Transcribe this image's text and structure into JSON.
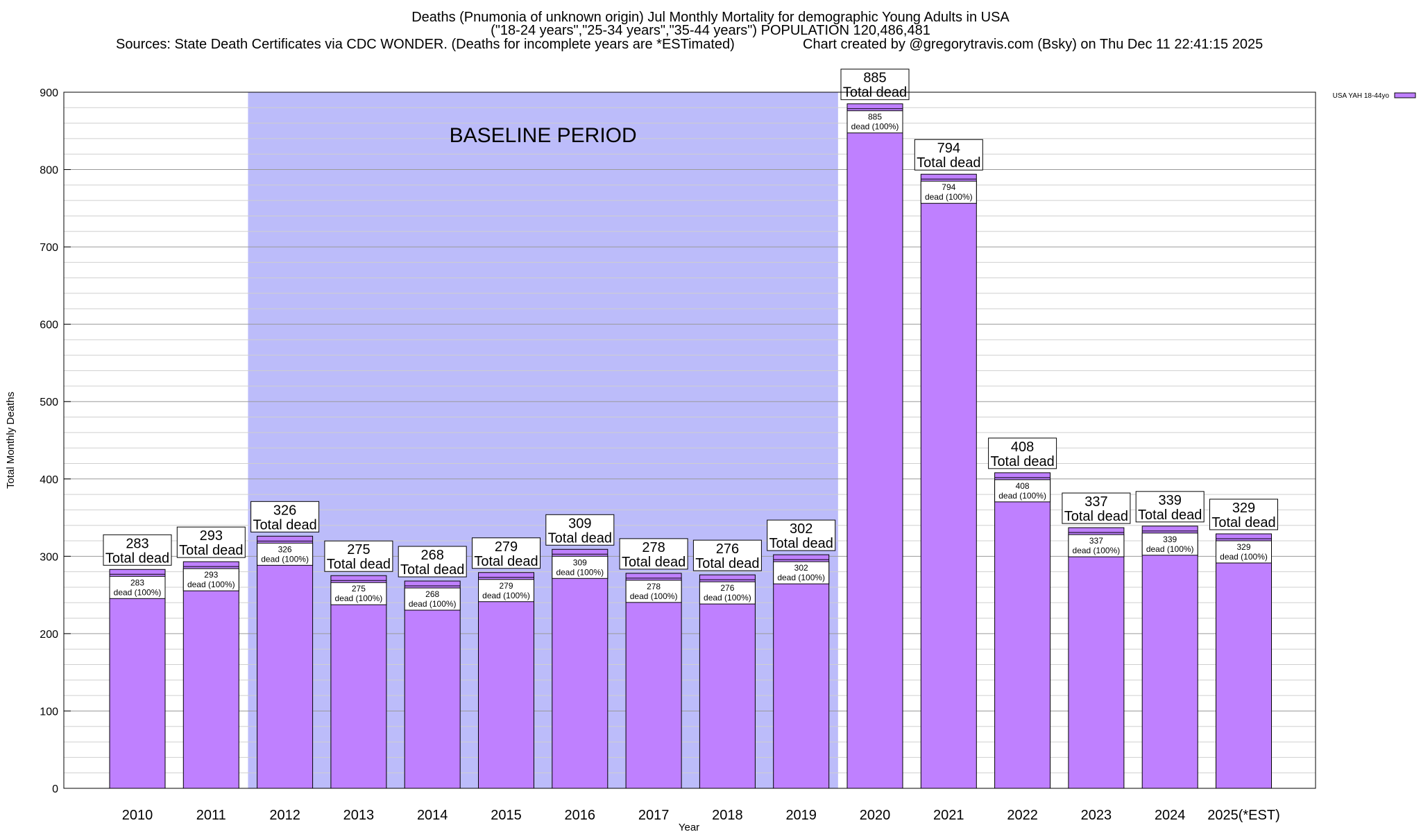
{
  "chart_data": {
    "type": "bar",
    "title": "Deaths (Pnumonia of unknown origin) Jul Monthly Mortality for demographic Young Adults in USA",
    "subtitle": "(\"18-24 years\",\"25-34 years\",\"35-44 years\") POPULATION 120,486,481",
    "sources": "Sources: State Death Certificates via CDC WONDER. (Deaths for incomplete years are *ESTimated)",
    "credit": "Chart created by @gregorytravis.com (Bsky) on Thu Dec 11 22:41:15 2025",
    "xlabel": "Year",
    "ylabel": "Total Monthly Deaths",
    "ylim": [
      0,
      900
    ],
    "yticks": [
      0,
      100,
      200,
      300,
      400,
      500,
      600,
      700,
      800,
      900
    ],
    "minor_grid_step": 20,
    "grid": true,
    "legend": {
      "position": "top-right",
      "label": "USA YAH 18-44yo"
    },
    "bar_color": "#bf80ff",
    "band_color": "#bcbcfa",
    "annotation": {
      "text": "BASELINE PERIOD",
      "from": "2012",
      "to": "2019"
    },
    "total_label": "Total dead",
    "inner_label": "dead (100%)",
    "categories": [
      "2010",
      "2011",
      "2012",
      "2013",
      "2014",
      "2015",
      "2016",
      "2017",
      "2018",
      "2019",
      "2020",
      "2021",
      "2022",
      "2023",
      "2024",
      "2025(*EST)"
    ],
    "values": [
      283,
      293,
      326,
      275,
      268,
      279,
      309,
      278,
      276,
      302,
      885,
      794,
      408,
      337,
      339,
      329
    ]
  }
}
